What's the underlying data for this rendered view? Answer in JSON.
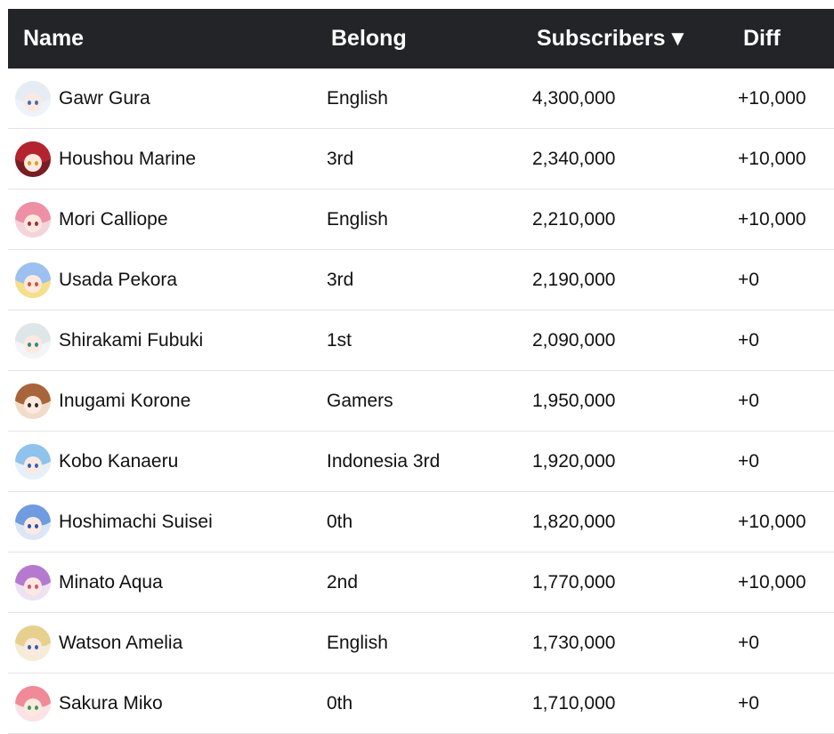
{
  "header": {
    "name": "Name",
    "belong": "Belong",
    "subscribers": "Subscribers",
    "sort_indicator": "▼",
    "diff": "Diff"
  },
  "rows": [
    {
      "name": "Gawr Gura",
      "belong": "English",
      "subscribers": "4,300,000",
      "diff": "+10,000",
      "avatar": {
        "icon": "gawr-gura-avatar-icon",
        "bg": "#eef3fa",
        "hair": "#e6ecf4",
        "eye": "#3b6fc4"
      }
    },
    {
      "name": "Houshou Marine",
      "belong": "3rd",
      "subscribers": "2,340,000",
      "diff": "+10,000",
      "avatar": {
        "icon": "houshou-marine-avatar-icon",
        "bg": "#7a1c24",
        "hair": "#b4242f",
        "eye": "#d6a024"
      }
    },
    {
      "name": "Mori Calliope",
      "belong": "English",
      "subscribers": "2,210,000",
      "diff": "+10,000",
      "avatar": {
        "icon": "mori-calliope-avatar-icon",
        "bg": "#f5d3da",
        "hair": "#ee8fa6",
        "eye": "#b0263c"
      }
    },
    {
      "name": "Usada Pekora",
      "belong": "3rd",
      "subscribers": "2,190,000",
      "diff": "+0",
      "avatar": {
        "icon": "usada-pekora-avatar-icon",
        "bg": "#f6df8a",
        "hair": "#9cc0ef",
        "eye": "#d2553a"
      }
    },
    {
      "name": "Shirakami Fubuki",
      "belong": "1st",
      "subscribers": "2,090,000",
      "diff": "+0",
      "avatar": {
        "icon": "shirakami-fubuki-avatar-icon",
        "bg": "#f2f4f6",
        "hair": "#dfe6ea",
        "eye": "#2c8c8e"
      }
    },
    {
      "name": "Inugami Korone",
      "belong": "Gamers",
      "subscribers": "1,950,000",
      "diff": "+0",
      "avatar": {
        "icon": "inugami-korone-avatar-icon",
        "bg": "#f0dcc8",
        "hair": "#a8643a",
        "eye": "#3a2a20"
      }
    },
    {
      "name": "Kobo Kanaeru",
      "belong": "Indonesia 3rd",
      "subscribers": "1,920,000",
      "diff": "+0",
      "avatar": {
        "icon": "kobo-kanaeru-avatar-icon",
        "bg": "#e6f0fa",
        "hair": "#8fc2ec",
        "eye": "#2b68b8"
      }
    },
    {
      "name": "Hoshimachi Suisei",
      "belong": "0th",
      "subscribers": "1,820,000",
      "diff": "+10,000",
      "avatar": {
        "icon": "hoshimachi-suisei-avatar-icon",
        "bg": "#dbe6f7",
        "hair": "#6f9be0",
        "eye": "#2455b0"
      }
    },
    {
      "name": "Minato Aqua",
      "belong": "2nd",
      "subscribers": "1,770,000",
      "diff": "+10,000",
      "avatar": {
        "icon": "minato-aqua-avatar-icon",
        "bg": "#eee2f2",
        "hair": "#b57ad0",
        "eye": "#d1507f"
      }
    },
    {
      "name": "Watson Amelia",
      "belong": "English",
      "subscribers": "1,730,000",
      "diff": "+0",
      "avatar": {
        "icon": "watson-amelia-avatar-icon",
        "bg": "#f5ecd8",
        "hair": "#e7cf8e",
        "eye": "#2b66a8"
      }
    },
    {
      "name": "Sakura Miko",
      "belong": "0th",
      "subscribers": "1,710,000",
      "diff": "+0",
      "avatar": {
        "icon": "sakura-miko-avatar-icon",
        "bg": "#fbe2e4",
        "hair": "#f08a98",
        "eye": "#3a9a5c"
      }
    }
  ]
}
